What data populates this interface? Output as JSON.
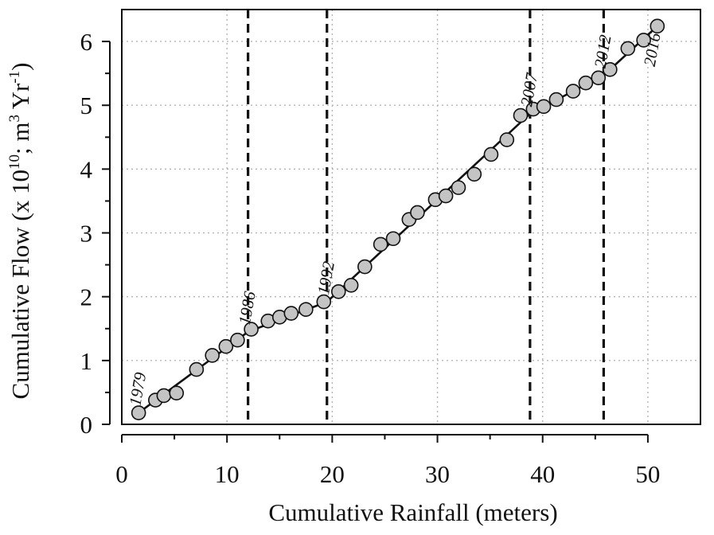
{
  "chart_data": {
    "type": "scatter",
    "title": "",
    "xlabel": "Cumulative Rainfall (meters)",
    "ylabel": {
      "base": "Cumulative Flow (x 10",
      "exp1": "10",
      "mid": "; m",
      "exp2": "3",
      "mid2": " Yr",
      "exp3": "-1",
      "tail": ")"
    },
    "xlim": [
      0,
      55
    ],
    "ylim": [
      0,
      6.5
    ],
    "xticks": [
      0,
      10,
      20,
      30,
      40,
      50
    ],
    "yticks": [
      0,
      1,
      2,
      3,
      4,
      5,
      6
    ],
    "xtick_labels": [
      "0",
      "10",
      "20",
      "30",
      "40",
      "50"
    ],
    "ytick_labels": [
      "0",
      "1",
      "2",
      "3",
      "4",
      "5",
      "6"
    ],
    "grid": true,
    "points": [
      {
        "x": 1.6,
        "y": 0.18
      },
      {
        "x": 3.2,
        "y": 0.38
      },
      {
        "x": 4.0,
        "y": 0.45
      },
      {
        "x": 5.2,
        "y": 0.49
      },
      {
        "x": 7.1,
        "y": 0.86
      },
      {
        "x": 8.6,
        "y": 1.08
      },
      {
        "x": 9.9,
        "y": 1.22
      },
      {
        "x": 11.0,
        "y": 1.32
      },
      {
        "x": 12.3,
        "y": 1.49
      },
      {
        "x": 13.9,
        "y": 1.62
      },
      {
        "x": 15.0,
        "y": 1.68
      },
      {
        "x": 16.1,
        "y": 1.74
      },
      {
        "x": 17.5,
        "y": 1.8
      },
      {
        "x": 19.2,
        "y": 1.92
      },
      {
        "x": 20.6,
        "y": 2.08
      },
      {
        "x": 21.8,
        "y": 2.18
      },
      {
        "x": 23.1,
        "y": 2.47
      },
      {
        "x": 24.6,
        "y": 2.82
      },
      {
        "x": 25.8,
        "y": 2.91
      },
      {
        "x": 27.3,
        "y": 3.21
      },
      {
        "x": 28.1,
        "y": 3.32
      },
      {
        "x": 29.8,
        "y": 3.52
      },
      {
        "x": 30.8,
        "y": 3.58
      },
      {
        "x": 32.0,
        "y": 3.71
      },
      {
        "x": 33.5,
        "y": 3.92
      },
      {
        "x": 35.1,
        "y": 4.23
      },
      {
        "x": 36.6,
        "y": 4.46
      },
      {
        "x": 37.9,
        "y": 4.84
      },
      {
        "x": 39.1,
        "y": 4.94
      },
      {
        "x": 40.1,
        "y": 4.98
      },
      {
        "x": 41.3,
        "y": 5.09
      },
      {
        "x": 42.9,
        "y": 5.22
      },
      {
        "x": 44.1,
        "y": 5.35
      },
      {
        "x": 45.3,
        "y": 5.43
      },
      {
        "x": 46.4,
        "y": 5.56
      },
      {
        "x": 48.1,
        "y": 5.89
      },
      {
        "x": 49.6,
        "y": 6.02
      },
      {
        "x": 50.9,
        "y": 6.24
      }
    ],
    "trend_line": [
      {
        "x": 1.6,
        "y": 0.18
      },
      {
        "x": 12.0,
        "y": 1.45
      },
      {
        "x": 19.5,
        "y": 1.92
      },
      {
        "x": 38.8,
        "y": 4.87
      },
      {
        "x": 45.8,
        "y": 5.47
      },
      {
        "x": 50.9,
        "y": 6.24
      }
    ],
    "break_lines": [
      12.0,
      19.5,
      38.8,
      45.8
    ],
    "annotations": [
      {
        "text": "1979",
        "x": 1.6,
        "y": 0.18
      },
      {
        "text": "1986",
        "x": 12.0,
        "y": 1.45
      },
      {
        "text": "1992",
        "x": 19.5,
        "y": 1.92
      },
      {
        "text": "2007",
        "x": 38.8,
        "y": 4.87
      },
      {
        "text": "2012",
        "x": 45.8,
        "y": 5.47
      },
      {
        "text": "2016",
        "x": 50.9,
        "y": 6.24
      }
    ]
  }
}
